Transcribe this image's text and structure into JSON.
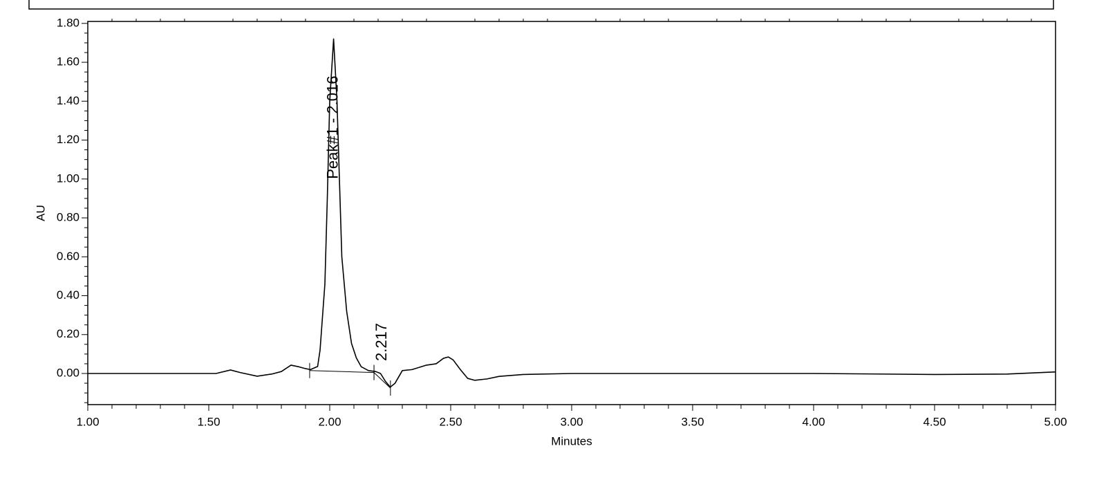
{
  "chart_data": {
    "type": "line",
    "xlabel": "Minutes",
    "ylabel": "AU",
    "series": [
      {
        "color": "#000000",
        "x": [
          1.0,
          1.5,
          1.53,
          1.59,
          1.63,
          1.7,
          1.76,
          1.8,
          1.84,
          1.87,
          1.9,
          1.92,
          1.95,
          1.96,
          1.98,
          1.99,
          2.0,
          2.016,
          2.03,
          2.05,
          2.07,
          2.09,
          2.11,
          2.13,
          2.16,
          2.19,
          2.21,
          2.23,
          2.25,
          2.27,
          2.3,
          2.34,
          2.4,
          2.44,
          2.47,
          2.49,
          2.51,
          2.54,
          2.57,
          2.6,
          2.65,
          2.7,
          2.8,
          3.0,
          4.0,
          4.5,
          4.8,
          5.0
        ],
        "values": [
          0.0,
          0.0,
          0.0,
          0.018,
          0.005,
          -0.014,
          -0.003,
          0.01,
          0.043,
          0.035,
          0.025,
          0.02,
          0.036,
          0.12,
          0.46,
          0.9,
          1.4,
          1.72,
          1.4,
          0.6,
          0.32,
          0.155,
          0.08,
          0.035,
          0.015,
          0.01,
          0.0,
          -0.04,
          -0.07,
          -0.05,
          0.015,
          0.02,
          0.043,
          0.05,
          0.078,
          0.085,
          0.07,
          0.02,
          -0.025,
          -0.035,
          -0.028,
          -0.015,
          -0.005,
          0.0,
          0.0,
          -0.005,
          -0.003,
          0.008
        ]
      }
    ],
    "baselines": [
      {
        "x": [
          1.917,
          2.183
        ],
        "values": [
          0.015,
          0.005
        ]
      },
      {
        "x": [
          2.183,
          2.251
        ],
        "values": [
          0.005,
          -0.075
        ]
      }
    ],
    "annotations": [
      {
        "text": "Peak#1 - 2.016",
        "x": 2.016,
        "y": 1.0
      },
      {
        "text": "2.217",
        "x": 2.217,
        "y": 0.064
      }
    ],
    "xlim": [
      1.0,
      5.0
    ],
    "xticks": [
      {
        "value": 1.0,
        "label": "1.00"
      },
      {
        "value": 1.5,
        "label": "1.50"
      },
      {
        "value": 2.0,
        "label": "2.00"
      },
      {
        "value": 2.5,
        "label": "2.50"
      },
      {
        "value": 3.0,
        "label": "3.00"
      },
      {
        "value": 3.5,
        "label": "3.50"
      },
      {
        "value": 4.0,
        "label": "4.00"
      },
      {
        "value": 4.5,
        "label": "4.50"
      },
      {
        "value": 5.0,
        "label": "5.00"
      }
    ],
    "xminorticks": [
      1.1,
      1.2,
      1.3,
      1.4,
      1.6,
      1.7,
      1.8,
      1.9,
      2.1,
      2.2,
      2.3,
      2.4,
      2.6,
      2.7,
      2.8,
      2.9,
      3.1,
      3.2,
      3.3,
      3.4,
      3.6,
      3.7,
      3.8,
      3.9,
      4.1,
      4.2,
      4.3,
      4.4,
      4.6,
      4.7,
      4.8,
      4.9
    ],
    "ylim": [
      -0.16,
      1.81
    ],
    "yticks": [
      {
        "value": 0.0,
        "label": "0.00"
      },
      {
        "value": 0.2,
        "label": "0.20"
      },
      {
        "value": 0.4,
        "label": "0.40"
      },
      {
        "value": 0.6,
        "label": "0.60"
      },
      {
        "value": 0.8,
        "label": "0.80"
      },
      {
        "value": 1.0,
        "label": "1.00"
      },
      {
        "value": 1.2,
        "label": "1.20"
      },
      {
        "value": 1.4,
        "label": "1.40"
      },
      {
        "value": 1.6,
        "label": "1.60"
      },
      {
        "value": 1.8,
        "label": "1.80"
      }
    ],
    "yminorticks": [
      -0.15,
      -0.1,
      -0.05,
      0.05,
      0.1,
      0.15,
      0.25,
      0.3,
      0.35,
      0.45,
      0.5,
      0.55,
      0.65,
      0.7,
      0.75,
      0.85,
      0.9,
      0.95,
      1.05,
      1.1,
      1.15,
      1.25,
      1.3,
      1.35,
      1.45,
      1.5,
      1.55,
      1.65,
      1.7,
      1.75
    ],
    "grid": false
  }
}
